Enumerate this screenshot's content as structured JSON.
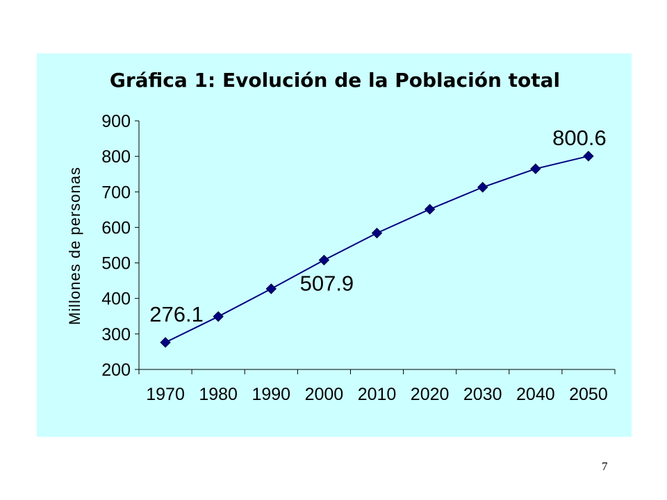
{
  "page": {
    "number": "7"
  },
  "chart_data": {
    "type": "line",
    "title": "Gráfica 1:  Evolución de la Población total",
    "xlabel": "",
    "ylabel": "Millones de personas",
    "categories": [
      "1970",
      "1980",
      "1990",
      "2000",
      "2010",
      "2020",
      "2030",
      "2040",
      "2050"
    ],
    "series": [
      {
        "values": [
          276.1,
          349,
          427,
          507.9,
          584,
          651,
          713,
          765,
          800.6
        ]
      }
    ],
    "ylim": [
      200,
      900
    ],
    "yticks": [
      200,
      300,
      400,
      500,
      600,
      700,
      800,
      900
    ],
    "data_labels": [
      {
        "index": 0,
        "text": "276.1"
      },
      {
        "index": 3,
        "text": "507.9"
      },
      {
        "index": 8,
        "text": "800.6"
      }
    ],
    "grid": false,
    "legend": "none",
    "colors": {
      "series": "#000080",
      "background": "#ccffff",
      "axis": "#000000"
    }
  }
}
